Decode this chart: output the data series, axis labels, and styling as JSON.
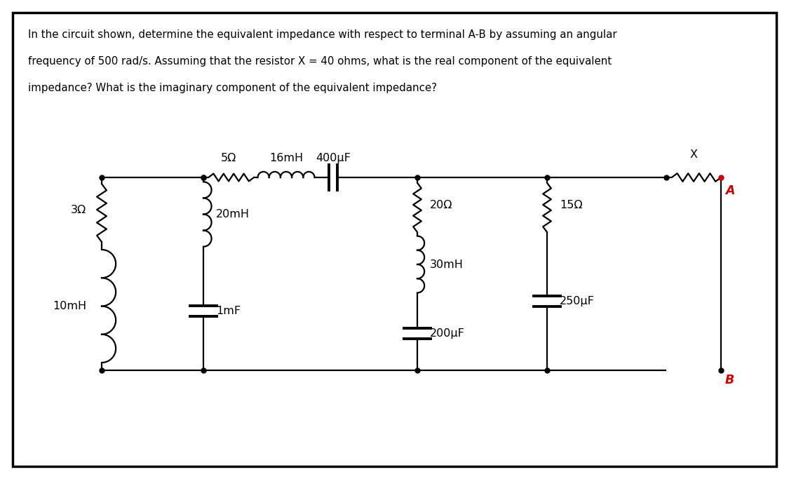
{
  "title_text": "In the circuit shown, determine the equivalent impedance with respect to terminal A-B by assuming an angular\nfrequency of 500 rad/s. Assuming that the resistor X = 40 ohms, what is the real component of the equivalent\nimpedance? What is the imaginary component of the equivalent impedance?",
  "bg_color": "#ffffff",
  "border_color": "#000000",
  "line_color": "#000000",
  "red_color": "#cc0000",
  "label_3ohm": "3Ω",
  "label_10mh": "10mH",
  "label_20mh": "20mH",
  "label_1mf": "1mF",
  "label_5ohm": "5Ω",
  "label_16mh": "16mH",
  "label_400uf": "400μF",
  "label_20ohm": "20Ω",
  "label_30mh": "30mH",
  "label_200uf": "200μF",
  "label_15ohm": "15Ω",
  "label_250uf": "250μF",
  "label_X": "X",
  "label_A": "A",
  "label_B": "B",
  "figwidth": 11.25,
  "figheight": 6.83,
  "dpi": 100
}
